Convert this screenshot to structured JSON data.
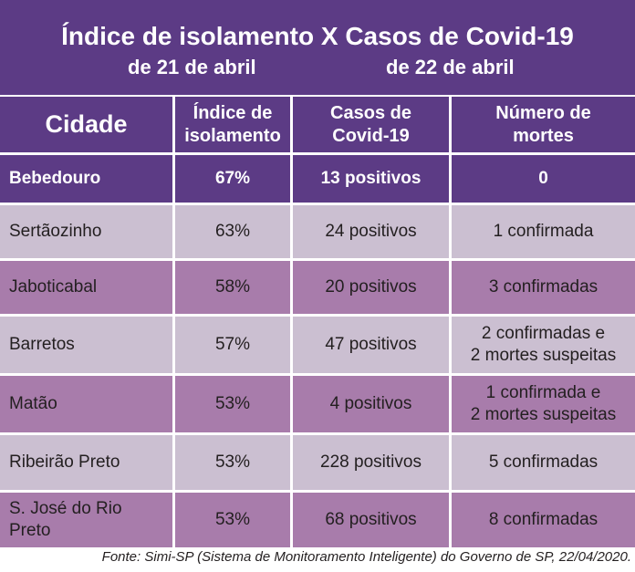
{
  "header": {
    "title": "Índice de isolamento X Casos de Covid-19",
    "subtitle_left": "de 21 de abril",
    "subtitle_right": "de 22 de abril"
  },
  "table": {
    "columns": [
      "Cidade",
      "Índice de\nisolamento",
      "Casos de\nCovid-19",
      "Número de\nmortes"
    ],
    "rows": [
      [
        "Bebedouro",
        "67%",
        "13 positivos",
        "0"
      ],
      [
        "Sertãozinho",
        "63%",
        "24 positivos",
        "1 confirmada"
      ],
      [
        "Jaboticabal",
        "58%",
        "20 positivos",
        "3 confirmadas"
      ],
      [
        "Barretos",
        "57%",
        "47 positivos",
        "2 confirmadas e\n2 mortes suspeitas"
      ],
      [
        "Matão",
        "53%",
        "4 positivos",
        "1 confirmada e\n2 mortes suspeitas"
      ],
      [
        "Ribeirão Preto",
        "53%",
        "228 positivos",
        "5 confirmadas"
      ],
      [
        "S. José do Rio\nPreto",
        "53%",
        "68 positivos",
        "8 confirmadas"
      ]
    ]
  },
  "footer": {
    "source": "Fonte: Simi-SP (Sistema de Monitoramento Inteligente) do Governo de SP, 22/04/2020."
  }
}
